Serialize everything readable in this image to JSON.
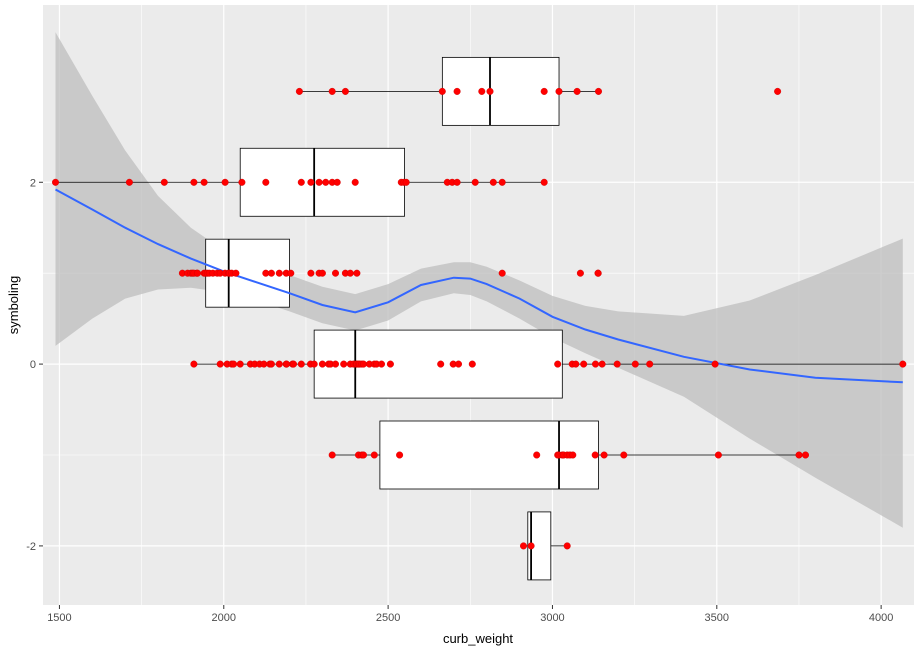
{
  "chart_data": {
    "type": "scatter",
    "xlabel": "curb_weight",
    "ylabel": "symboling",
    "xlim": [
      1450,
      4100
    ],
    "ylim": [
      -2.65,
      3.95
    ],
    "x_ticks": [
      1500,
      2000,
      2500,
      3000,
      3500,
      4000
    ],
    "y_ticks": [
      -2,
      0,
      2
    ],
    "x_tick_labels": [
      "1500",
      "2000",
      "2500",
      "3000",
      "3500",
      "4000"
    ],
    "y_tick_labels": [
      "-2",
      "0",
      "2"
    ],
    "grid": true,
    "colors": {
      "panel": "#ebebeb",
      "grid": "#ffffff",
      "points": "#ff0000",
      "smooth_line": "#3366ff",
      "ribbon": "#bebebe",
      "box_fill": "#ffffff",
      "box_line": "#000000"
    },
    "boxplots": [
      {
        "group": 3,
        "min": 2230,
        "q1": 2665,
        "median": 2810,
        "q3": 3020,
        "max": 3140
      },
      {
        "group": 2,
        "min": 1488,
        "q1": 2050,
        "median": 2275,
        "q3": 2550,
        "max": 2975
      },
      {
        "group": 1,
        "min": 1940,
        "q1": 1945,
        "median": 2015,
        "q3": 2200,
        "max": 2200
      },
      {
        "group": 0,
        "min": 1910,
        "q1": 2275,
        "median": 2400,
        "q3": 3030,
        "max": 4070
      },
      {
        "group": -1,
        "min": 2330,
        "q1": 2475,
        "median": 3020,
        "q3": 3140,
        "max": 3770
      },
      {
        "group": -2,
        "min": 2920,
        "q1": 2925,
        "median": 2935,
        "q3": 2995,
        "max": 3045
      }
    ],
    "points": [
      {
        "y": 3,
        "x": [
          2230,
          2330,
          2370,
          2665,
          2710,
          2785,
          2810,
          2975,
          3020,
          3075,
          3140,
          3685
        ]
      },
      {
        "y": 2,
        "x": [
          1488,
          1713,
          1819,
          1909,
          1940,
          2004,
          2055,
          2128,
          2236,
          2265,
          2290,
          2310,
          2330,
          2345,
          2400,
          2540,
          2548,
          2555,
          2680,
          2695,
          2710,
          2765,
          2820,
          2847,
          2975
        ]
      },
      {
        "y": 1,
        "x": [
          1918,
          1874,
          1890,
          1900,
          1905,
          1909,
          1920,
          1940,
          1945,
          1950,
          1956,
          1967,
          1980,
          1989,
          2004,
          2015,
          2017,
          2024,
          2037,
          2128,
          2145,
          2169,
          2190,
          2204,
          2265,
          2290,
          2300,
          2340,
          2370,
          2385,
          2405,
          2847,
          3085,
          3139,
          3139
        ]
      },
      {
        "y": 0,
        "x": [
          1909,
          1989,
          2010,
          2024,
          2030,
          2050,
          2081,
          2094,
          2109,
          2122,
          2140,
          2145,
          2169,
          2190,
          2191,
          2209,
          2212,
          2236,
          2264,
          2275,
          2300,
          2319,
          2325,
          2340,
          2365,
          2385,
          2395,
          2403,
          2405,
          2410,
          2414,
          2420,
          2425,
          2443,
          2458,
          2465,
          2480,
          2507,
          2660,
          2698,
          2714,
          2756,
          3016,
          3060,
          3071,
          3095,
          3131,
          3151,
          3197,
          3252,
          3296,
          3495,
          4066
        ]
      },
      {
        "y": -1,
        "x": [
          2330,
          2410,
          2420,
          2425,
          2458,
          2535,
          2952,
          3016,
          3020,
          3030,
          3034,
          3045,
          3053,
          3062,
          3130,
          3157,
          3217,
          3505,
          3750,
          3770
        ]
      },
      {
        "y": -2,
        "x": [
          2912,
          2935,
          3045
        ]
      }
    ],
    "smooth_line": {
      "x": [
        1488,
        1600,
        1700,
        1800,
        1900,
        2000,
        2100,
        2200,
        2300,
        2400,
        2500,
        2600,
        2700,
        2750,
        2800,
        2900,
        3000,
        3100,
        3200,
        3400,
        3600,
        3800,
        4066
      ],
      "y": [
        1.92,
        1.7,
        1.5,
        1.32,
        1.16,
        1.02,
        0.9,
        0.78,
        0.65,
        0.57,
        0.68,
        0.87,
        0.95,
        0.94,
        0.88,
        0.72,
        0.52,
        0.38,
        0.27,
        0.08,
        -0.06,
        -0.15,
        -0.2
      ]
    },
    "confidence_band": {
      "x": [
        1488,
        1600,
        1700,
        1800,
        1900,
        2000,
        2100,
        2200,
        2300,
        2400,
        2500,
        2600,
        2700,
        2750,
        2800,
        2900,
        3000,
        3100,
        3200,
        3400,
        3600,
        3800,
        4066
      ],
      "upper": [
        3.65,
        2.95,
        2.35,
        1.85,
        1.5,
        1.25,
        1.1,
        0.98,
        0.85,
        0.77,
        0.88,
        1.05,
        1.12,
        1.12,
        1.07,
        0.92,
        0.75,
        0.64,
        0.58,
        0.53,
        0.7,
        0.98,
        1.38
      ],
      "lower": [
        0.2,
        0.5,
        0.72,
        0.82,
        0.84,
        0.79,
        0.7,
        0.58,
        0.45,
        0.37,
        0.48,
        0.69,
        0.78,
        0.76,
        0.69,
        0.5,
        0.29,
        0.12,
        -0.04,
        -0.36,
        -0.82,
        -1.25,
        -1.8
      ]
    }
  }
}
